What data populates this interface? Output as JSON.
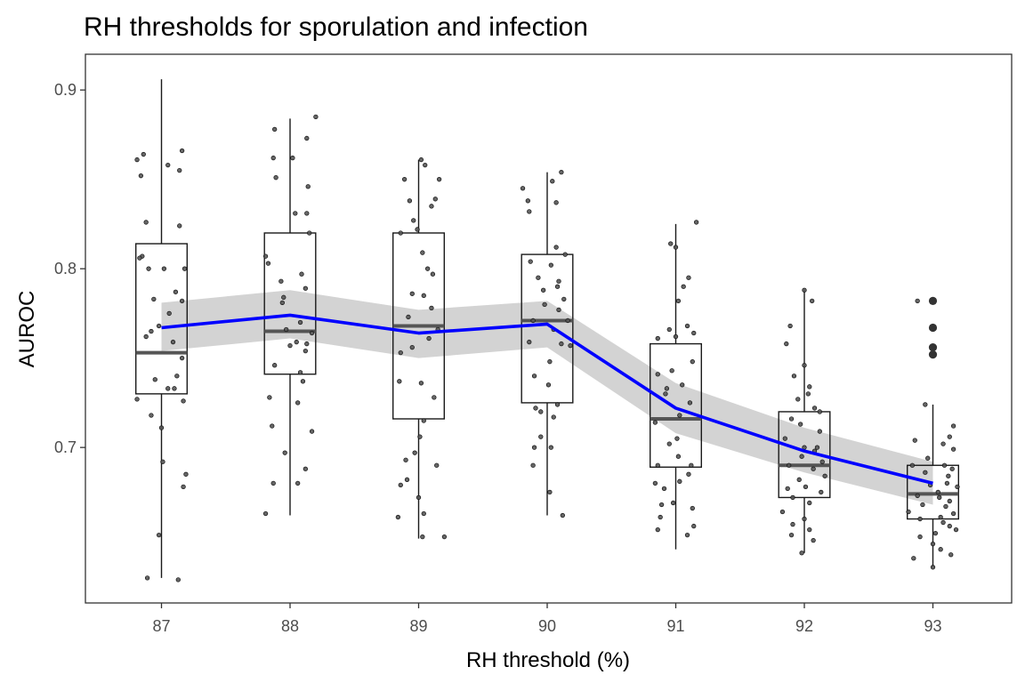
{
  "chart_data": {
    "type": "box",
    "title": "RH thresholds for sporulation and infection",
    "xlabel": "RH threshold (%)",
    "ylabel": "AUROC",
    "categories": [
      "87",
      "88",
      "89",
      "90",
      "91",
      "92",
      "93"
    ],
    "ylim": [
      0.613,
      0.92
    ],
    "yticks": [
      0.7,
      0.8,
      0.9
    ],
    "ytick_labels": [
      "0.7",
      "0.8",
      "0.9"
    ],
    "grid": false,
    "legend": "none",
    "boxplot": [
      {
        "category": "87",
        "whisker_low": 0.627,
        "q1": 0.73,
        "median": 0.753,
        "q3": 0.814,
        "whisker_high": 0.906,
        "outliers": []
      },
      {
        "category": "88",
        "whisker_low": 0.662,
        "q1": 0.741,
        "median": 0.765,
        "q3": 0.82,
        "whisker_high": 0.884,
        "outliers": []
      },
      {
        "category": "89",
        "whisker_low": 0.649,
        "q1": 0.716,
        "median": 0.768,
        "q3": 0.82,
        "whisker_high": 0.861,
        "outliers": []
      },
      {
        "category": "90",
        "whisker_low": 0.662,
        "q1": 0.725,
        "median": 0.771,
        "q3": 0.808,
        "whisker_high": 0.854,
        "outliers": []
      },
      {
        "category": "91",
        "whisker_low": 0.643,
        "q1": 0.689,
        "median": 0.716,
        "q3": 0.758,
        "whisker_high": 0.825,
        "outliers": []
      },
      {
        "category": "92",
        "whisker_low": 0.641,
        "q1": 0.672,
        "median": 0.69,
        "q3": 0.72,
        "whisker_high": 0.788,
        "outliers": []
      },
      {
        "category": "93",
        "whisker_low": 0.633,
        "q1": 0.66,
        "median": 0.674,
        "q3": 0.69,
        "whisker_high": 0.724,
        "outliers": [
          0.782,
          0.767,
          0.756,
          0.752
        ]
      }
    ],
    "trend_line": {
      "color": "#0000ff",
      "x": [
        "87",
        "88",
        "89",
        "90",
        "91",
        "92",
        "93"
      ],
      "y": [
        0.767,
        0.774,
        0.764,
        0.769,
        0.722,
        0.698,
        0.68
      ],
      "ci_lower": [
        0.754,
        0.761,
        0.75,
        0.756,
        0.708,
        0.686,
        0.668
      ],
      "ci_upper": [
        0.781,
        0.788,
        0.777,
        0.782,
        0.736,
        0.711,
        0.692
      ],
      "ci_color": "#d3d3d3"
    },
    "jitter_points": [
      {
        "category": "87",
        "points": [
          [
            -0.19,
            0.861
          ],
          [
            -0.14,
            0.864
          ],
          [
            0.16,
            0.866
          ],
          [
            0.05,
            0.858
          ],
          [
            0.14,
            0.855
          ],
          [
            -0.16,
            0.852
          ],
          [
            -0.12,
            0.826
          ],
          [
            0.14,
            0.824
          ],
          [
            -0.1,
            0.8
          ],
          [
            0.18,
            0.8
          ],
          [
            -0.15,
            0.807
          ],
          [
            0.11,
            0.787
          ],
          [
            -0.06,
            0.783
          ],
          [
            0.16,
            0.782
          ],
          [
            -0.08,
            0.765
          ],
          [
            0.09,
            0.759
          ],
          [
            0.16,
            0.75
          ],
          [
            0.12,
            0.74
          ],
          [
            -0.05,
            0.738
          ],
          [
            0.1,
            0.733
          ],
          [
            -0.19,
            0.727
          ],
          [
            0.05,
            0.733
          ],
          [
            0.17,
            0.726
          ],
          [
            -0.08,
            0.718
          ],
          [
            0.0,
            0.711
          ],
          [
            0.19,
            0.685
          ],
          [
            0.17,
            0.678
          ],
          [
            0.01,
            0.692
          ],
          [
            -0.02,
            0.651
          ],
          [
            -0.11,
            0.627
          ],
          [
            0.13,
            0.626
          ],
          [
            -0.12,
            0.762
          ],
          [
            -0.02,
            0.768
          ],
          [
            0.06,
            0.775
          ],
          [
            -0.17,
            0.806
          ],
          [
            0.02,
            0.8
          ]
        ]
      },
      {
        "category": "88",
        "points": [
          [
            -0.12,
            0.878
          ],
          [
            0.2,
            0.885
          ],
          [
            0.02,
            0.862
          ],
          [
            -0.13,
            0.862
          ],
          [
            0.13,
            0.873
          ],
          [
            -0.11,
            0.851
          ],
          [
            0.14,
            0.846
          ],
          [
            0.13,
            0.831
          ],
          [
            0.04,
            0.831
          ],
          [
            -0.19,
            0.807
          ],
          [
            -0.17,
            0.803
          ],
          [
            0.15,
            0.82
          ],
          [
            -0.07,
            0.793
          ],
          [
            0.09,
            0.797
          ],
          [
            0.12,
            0.789
          ],
          [
            -0.05,
            0.784
          ],
          [
            0.08,
            0.77
          ],
          [
            0.13,
            0.758
          ],
          [
            -0.03,
            0.766
          ],
          [
            0.17,
            0.764
          ],
          [
            0.05,
            0.759
          ],
          [
            0.12,
            0.754
          ],
          [
            -0.12,
            0.746
          ],
          [
            0.1,
            0.737
          ],
          [
            -0.16,
            0.728
          ],
          [
            0.06,
            0.725
          ],
          [
            0.17,
            0.709
          ],
          [
            -0.14,
            0.712
          ],
          [
            -0.04,
            0.697
          ],
          [
            0.12,
            0.688
          ],
          [
            0.06,
            0.68
          ],
          [
            -0.13,
            0.68
          ],
          [
            -0.19,
            0.663
          ],
          [
            0.08,
            0.742
          ],
          [
            -0.06,
            0.781
          ],
          [
            0.0,
            0.757
          ]
        ]
      },
      {
        "category": "89",
        "points": [
          [
            0.02,
            0.861
          ],
          [
            0.05,
            0.858
          ],
          [
            -0.11,
            0.85
          ],
          [
            -0.07,
            0.838
          ],
          [
            0.13,
            0.839
          ],
          [
            -0.04,
            0.827
          ],
          [
            0.1,
            0.835
          ],
          [
            0.03,
            0.809
          ],
          [
            -0.14,
            0.82
          ],
          [
            0.11,
            0.797
          ],
          [
            -0.05,
            0.786
          ],
          [
            0.04,
            0.785
          ],
          [
            0.1,
            0.778
          ],
          [
            -0.08,
            0.773
          ],
          [
            0.15,
            0.766
          ],
          [
            0.08,
            0.761
          ],
          [
            -0.05,
            0.756
          ],
          [
            -0.14,
            0.753
          ],
          [
            -0.15,
            0.737
          ],
          [
            0.02,
            0.736
          ],
          [
            0.12,
            0.728
          ],
          [
            0.01,
            0.706
          ],
          [
            0.04,
            0.715
          ],
          [
            -0.03,
            0.697
          ],
          [
            -0.1,
            0.693
          ],
          [
            0.14,
            0.69
          ],
          [
            -0.14,
            0.679
          ],
          [
            -0.09,
            0.682
          ],
          [
            0.0,
            0.672
          ],
          [
            0.04,
            0.663
          ],
          [
            -0.16,
            0.661
          ],
          [
            0.03,
            0.65
          ],
          [
            0.2,
            0.65
          ],
          [
            -0.01,
            0.822
          ],
          [
            0.07,
            0.8
          ],
          [
            0.16,
            0.85
          ]
        ]
      },
      {
        "category": "90",
        "points": [
          [
            0.11,
            0.854
          ],
          [
            0.04,
            0.849
          ],
          [
            -0.19,
            0.845
          ],
          [
            -0.15,
            0.838
          ],
          [
            0.07,
            0.837
          ],
          [
            -0.14,
            0.832
          ],
          [
            0.07,
            0.812
          ],
          [
            0.14,
            0.808
          ],
          [
            -0.13,
            0.804
          ],
          [
            0.03,
            0.802
          ],
          [
            0.08,
            0.79
          ],
          [
            -0.03,
            0.788
          ],
          [
            0.13,
            0.783
          ],
          [
            0.09,
            0.777
          ],
          [
            -0.11,
            0.771
          ],
          [
            0.16,
            0.771
          ],
          [
            0.05,
            0.766
          ],
          [
            0.11,
            0.758
          ],
          [
            -0.14,
            0.759
          ],
          [
            0.02,
            0.748
          ],
          [
            -0.1,
            0.74
          ],
          [
            0.01,
            0.735
          ],
          [
            0.08,
            0.724
          ],
          [
            -0.09,
            0.722
          ],
          [
            0.05,
            0.717
          ],
          [
            -0.05,
            0.706
          ],
          [
            0.03,
            0.7
          ],
          [
            -0.1,
            0.7
          ],
          [
            -0.11,
            0.69
          ],
          [
            0.02,
            0.675
          ],
          [
            0.12,
            0.662
          ],
          [
            -0.05,
            0.72
          ],
          [
            0.09,
            0.793
          ],
          [
            -0.07,
            0.795
          ],
          [
            0.18,
            0.757
          ],
          [
            -0.02,
            0.78
          ]
        ]
      },
      {
        "category": "91",
        "points": [
          [
            0.0,
            0.812
          ],
          [
            0.16,
            0.826
          ],
          [
            -0.04,
            0.814
          ],
          [
            0.1,
            0.795
          ],
          [
            0.02,
            0.782
          ],
          [
            -0.05,
            0.766
          ],
          [
            0.09,
            0.768
          ],
          [
            0.0,
            0.762
          ],
          [
            0.14,
            0.764
          ],
          [
            -0.14,
            0.761
          ],
          [
            0.13,
            0.748
          ],
          [
            -0.03,
            0.743
          ],
          [
            -0.14,
            0.741
          ],
          [
            0.05,
            0.735
          ],
          [
            -0.08,
            0.73
          ],
          [
            0.11,
            0.725
          ],
          [
            0.03,
            0.718
          ],
          [
            -0.16,
            0.714
          ],
          [
            0.01,
            0.705
          ],
          [
            -0.05,
            0.702
          ],
          [
            0.02,
            0.695
          ],
          [
            0.12,
            0.69
          ],
          [
            -0.14,
            0.69
          ],
          [
            0.1,
            0.685
          ],
          [
            0.03,
            0.681
          ],
          [
            -0.09,
            0.677
          ],
          [
            -0.02,
            0.669
          ],
          [
            -0.11,
            0.668
          ],
          [
            0.13,
            0.666
          ],
          [
            -0.12,
            0.661
          ],
          [
            0.14,
            0.656
          ],
          [
            -0.14,
            0.654
          ],
          [
            0.09,
            0.651
          ],
          [
            -0.16,
            0.68
          ],
          [
            0.06,
            0.79
          ],
          [
            -0.07,
            0.733
          ]
        ]
      },
      {
        "category": "92",
        "points": [
          [
            0.0,
            0.788
          ],
          [
            0.06,
            0.782
          ],
          [
            -0.11,
            0.768
          ],
          [
            -0.14,
            0.758
          ],
          [
            -0.08,
            0.74
          ],
          [
            0.0,
            0.746
          ],
          [
            0.04,
            0.734
          ],
          [
            0.08,
            0.722
          ],
          [
            0.12,
            0.72
          ],
          [
            -0.1,
            0.716
          ],
          [
            -0.03,
            0.713
          ],
          [
            0.12,
            0.709
          ],
          [
            0.08,
            0.698
          ],
          [
            0.0,
            0.7
          ],
          [
            -0.02,
            0.695
          ],
          [
            0.14,
            0.692
          ],
          [
            -0.12,
            0.69
          ],
          [
            0.07,
            0.688
          ],
          [
            -0.04,
            0.682
          ],
          [
            -0.13,
            0.677
          ],
          [
            0.01,
            0.678
          ],
          [
            0.13,
            0.675
          ],
          [
            -0.09,
            0.672
          ],
          [
            0.04,
            0.669
          ],
          [
            -0.17,
            0.664
          ],
          [
            0.0,
            0.66
          ],
          [
            -0.09,
            0.657
          ],
          [
            0.04,
            0.654
          ],
          [
            -0.1,
            0.651
          ],
          [
            0.07,
            0.648
          ],
          [
            -0.02,
            0.641
          ],
          [
            0.1,
            0.7
          ],
          [
            -0.05,
            0.727
          ],
          [
            0.16,
            0.684
          ],
          [
            -0.15,
            0.705
          ],
          [
            0.03,
            0.73
          ]
        ]
      },
      {
        "category": "93",
        "points": [
          [
            -0.12,
            0.782
          ],
          [
            -0.06,
            0.724
          ],
          [
            0.16,
            0.712
          ],
          [
            0.13,
            0.706
          ],
          [
            -0.14,
            0.704
          ],
          [
            0.08,
            0.702
          ],
          [
            0.09,
            0.69
          ],
          [
            0.15,
            0.688
          ],
          [
            -0.06,
            0.686
          ],
          [
            0.11,
            0.68
          ],
          [
            -0.02,
            0.679
          ],
          [
            0.19,
            0.678
          ],
          [
            0.04,
            0.675
          ],
          [
            -0.12,
            0.673
          ],
          [
            0.13,
            0.67
          ],
          [
            0.1,
            0.667
          ],
          [
            -0.19,
            0.664
          ],
          [
            0.16,
            0.663
          ],
          [
            0.06,
            0.661
          ],
          [
            -0.1,
            0.66
          ],
          [
            0.13,
            0.656
          ],
          [
            0.18,
            0.654
          ],
          [
            0.02,
            0.652
          ],
          [
            -0.1,
            0.65
          ],
          [
            0.0,
            0.646
          ],
          [
            0.06,
            0.643
          ],
          [
            -0.15,
            0.638
          ],
          [
            0.0,
            0.633
          ],
          [
            0.16,
            0.699
          ],
          [
            -0.04,
            0.694
          ],
          [
            0.12,
            0.684
          ],
          [
            -0.08,
            0.668
          ],
          [
            0.05,
            0.672
          ],
          [
            -0.16,
            0.69
          ],
          [
            0.08,
            0.658
          ],
          [
            0.14,
            0.64
          ]
        ]
      }
    ]
  }
}
